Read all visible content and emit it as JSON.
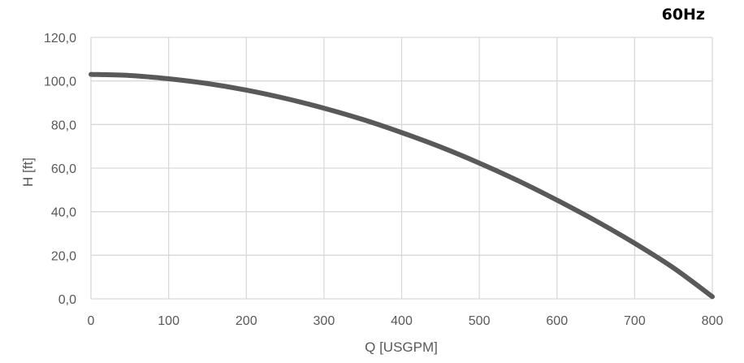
{
  "chart_data": {
    "type": "line",
    "title": "60Hz",
    "xlabel": "Q [USGPM]",
    "ylabel": "H [ft]",
    "xlim": [
      0,
      800
    ],
    "ylim": [
      0,
      120
    ],
    "x_ticks": [
      "0",
      "100",
      "200",
      "300",
      "400",
      "500",
      "600",
      "700",
      "800"
    ],
    "y_ticks": [
      "0,0",
      "20,0",
      "40,0",
      "60,0",
      "80,0",
      "100,0",
      "120,0"
    ],
    "grid": true,
    "line_color": "#595959",
    "grid_color": "#d9d9d9",
    "series": [
      {
        "x": [
          0,
          50,
          100,
          150,
          200,
          250,
          300,
          350,
          400,
          450,
          500,
          550,
          600,
          650,
          700,
          750,
          800
        ],
        "values": [
          103.0,
          102.5,
          101.0,
          98.8,
          95.8,
          92.0,
          87.5,
          82.3,
          76.3,
          69.7,
          62.3,
          54.2,
          45.3,
          35.8,
          25.5,
          14.2,
          1.0
        ]
      }
    ]
  }
}
